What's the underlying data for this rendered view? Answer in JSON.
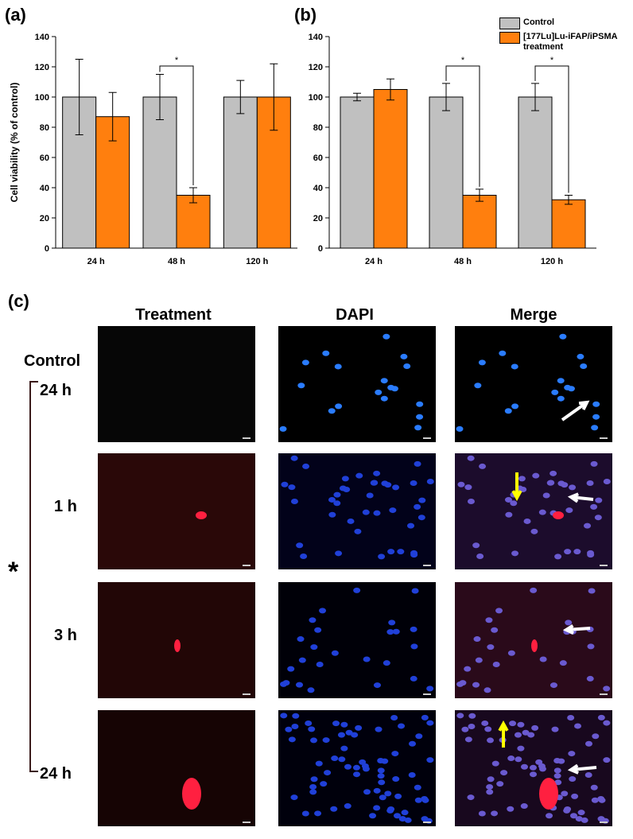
{
  "panels": {
    "a": "(a)",
    "b": "(b)",
    "c": "(c)"
  },
  "chart_data": [
    {
      "type": "bar",
      "y_label": "Cell viability (% of control)",
      "categories": [
        "24 h",
        "48 h",
        "120 h"
      ],
      "series": [
        {
          "color": "#c0c0c0",
          "values": [
            100,
            100,
            100
          ],
          "errors": [
            25,
            15,
            11
          ]
        },
        {
          "color": "#ff7f0e",
          "values": [
            87,
            35,
            100
          ],
          "errors": [
            16,
            5,
            22
          ]
        }
      ],
      "ylim": [
        0,
        140
      ],
      "yticks": [
        0,
        20,
        40,
        60,
        80,
        100,
        120,
        140
      ],
      "annotations": [
        "*"
      ]
    },
    {
      "type": "bar",
      "categories": [
        "24 h",
        "48 h",
        "120 h"
      ],
      "series": [
        {
          "name": "Control",
          "color": "#c0c0c0",
          "values": [
            100,
            100,
            100
          ],
          "errors": [
            2.5,
            9,
            9
          ]
        },
        {
          "name": "[177Lu]Lu-iFAP/iPSMA treatment",
          "color": "#ff7f0e",
          "values": [
            105,
            35,
            32
          ],
          "errors": [
            7,
            4,
            3
          ]
        }
      ],
      "ylim": [
        0,
        140
      ],
      "yticks": [
        0,
        20,
        40,
        60,
        80,
        100,
        120,
        140
      ],
      "annotations": [
        "*",
        "*"
      ]
    }
  ],
  "micrographs": {
    "columns": [
      "Treatment",
      "DAPI",
      "Merge"
    ],
    "group_label": "Control",
    "rows": [
      "24 h",
      "1 h",
      "3 h",
      "24 h"
    ],
    "marker": "*"
  }
}
